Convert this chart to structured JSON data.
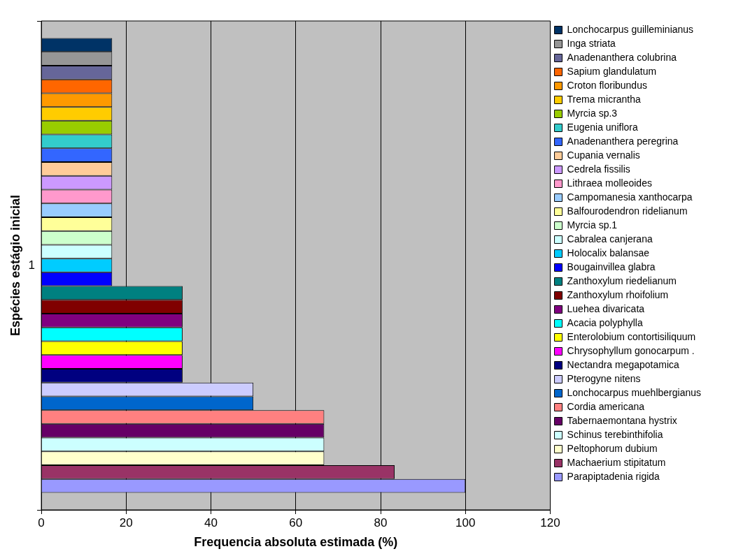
{
  "chart_data": {
    "type": "bar",
    "orientation": "horizontal",
    "xlabel": "Frequencia absoluta estimada (%)",
    "ylabel": "Espécies estágio inicial",
    "categories": [
      "1"
    ],
    "xlim": [
      0,
      120
    ],
    "xticks": [
      0,
      20,
      40,
      60,
      80,
      100,
      120
    ],
    "grid": "x",
    "legend": "right",
    "series": [
      {
        "name": "Lonchocarpus guilleminianus",
        "color": "#003366",
        "values": [
          16.7
        ]
      },
      {
        "name": "Inga striata",
        "color": "#969696",
        "values": [
          16.7
        ]
      },
      {
        "name": "Anadenanthera colubrina",
        "color": "#666699",
        "values": [
          16.7
        ]
      },
      {
        "name": "Sapium glandulatum",
        "color": "#ff6600",
        "values": [
          16.7
        ]
      },
      {
        "name": "Croton floribundus",
        "color": "#ff9900",
        "values": [
          16.7
        ]
      },
      {
        "name": "Trema micrantha",
        "color": "#ffcc00",
        "values": [
          16.7
        ]
      },
      {
        "name": "Myrcia sp.3",
        "color": "#99cc00",
        "values": [
          16.7
        ]
      },
      {
        "name": "Eugenia uniflora",
        "color": "#33cccc",
        "values": [
          16.7
        ]
      },
      {
        "name": "Anadenanthera peregrina",
        "color": "#3366ff",
        "values": [
          16.7
        ]
      },
      {
        "name": "Cupania vernalis",
        "color": "#ffcc99",
        "values": [
          16.7
        ]
      },
      {
        "name": "Cedrela fissilis",
        "color": "#cc99ff",
        "values": [
          16.7
        ]
      },
      {
        "name": "Lithraea molleoides",
        "color": "#ff99cc",
        "values": [
          16.7
        ]
      },
      {
        "name": "Campomanesia xanthocarpa",
        "color": "#99ccff",
        "values": [
          16.7
        ]
      },
      {
        "name": "Balfourodendron ridelianum",
        "color": "#ffff99",
        "values": [
          16.7
        ]
      },
      {
        "name": "Myrcia sp.1",
        "color": "#ccffcc",
        "values": [
          16.7
        ]
      },
      {
        "name": "Cabralea canjerana",
        "color": "#ccffff",
        "values": [
          16.7
        ]
      },
      {
        "name": "Holocalix balansae",
        "color": "#00ccff",
        "values": [
          16.7
        ]
      },
      {
        "name": "Bougainvillea glabra",
        "color": "#0000ff",
        "values": [
          16.7
        ]
      },
      {
        "name": "Zanthoxylum riedelianum",
        "color": "#008080",
        "values": [
          33.3
        ]
      },
      {
        "name": "Zanthoxylum rhoifolium",
        "color": "#800000",
        "values": [
          33.3
        ]
      },
      {
        "name": "Luehea divaricata",
        "color": "#800080",
        "values": [
          33.3
        ]
      },
      {
        "name": "Acacia polyphylla",
        "color": "#00ffff",
        "values": [
          33.3
        ]
      },
      {
        "name": "Enterolobium contortisiliquum",
        "color": "#ffff00",
        "values": [
          33.3
        ]
      },
      {
        "name": "Chrysophyllum gonocarpum .",
        "color": "#ff00ff",
        "values": [
          33.3
        ]
      },
      {
        "name": "Nectandra megapotamica",
        "color": "#000080",
        "values": [
          33.3
        ]
      },
      {
        "name": "Pterogyne nitens",
        "color": "#ccccff",
        "values": [
          50
        ]
      },
      {
        "name": "Lonchocarpus muehlbergianus",
        "color": "#0066cc",
        "values": [
          50
        ]
      },
      {
        "name": "Cordia americana",
        "color": "#ff8080",
        "values": [
          66.7
        ]
      },
      {
        "name": "Tabernaemontana hystrix",
        "color": "#660066",
        "values": [
          66.7
        ]
      },
      {
        "name": "Schinus terebinthifolia",
        "color": "#ccffff",
        "values": [
          66.7
        ]
      },
      {
        "name": "Peltophorum dubium",
        "color": "#ffffcc",
        "values": [
          66.7
        ]
      },
      {
        "name": "Machaerium stipitatum",
        "color": "#993366",
        "values": [
          83.3
        ]
      },
      {
        "name": "Parapiptadenia rigida",
        "color": "#9999ff",
        "values": [
          100
        ]
      }
    ]
  }
}
